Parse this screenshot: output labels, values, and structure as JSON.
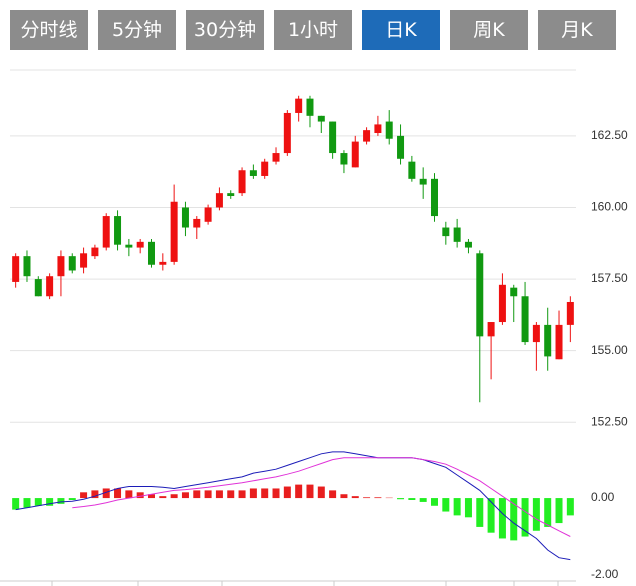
{
  "tabs": [
    {
      "label": "分时线"
    },
    {
      "label": "5分钟"
    },
    {
      "label": "30分钟"
    },
    {
      "label": "1小时"
    },
    {
      "label": "日K",
      "active": true
    },
    {
      "label": "周K"
    },
    {
      "label": "月K"
    }
  ],
  "chart_data": [
    {
      "type": "candlestick",
      "up_color": "#ee1111",
      "down_color": "#119911",
      "ylim": [
        152.3,
        164.8
      ],
      "yticks": [
        {
          "value": 152.5,
          "label": "152.50"
        },
        {
          "value": 155,
          "label": "155.00"
        },
        {
          "value": 157.5,
          "label": "157.50"
        },
        {
          "value": 160,
          "label": "160.00"
        },
        {
          "value": 162.5,
          "label": "162.50"
        }
      ],
      "grid": true,
      "open": [
        157.4,
        158.3,
        157.5,
        156.9,
        157.6,
        158.3,
        157.9,
        158.3,
        158.6,
        159.7,
        158.7,
        158.6,
        158.8,
        158.0,
        158.1,
        160.0,
        159.3,
        159.5,
        160.0,
        160.5,
        160.5,
        161.3,
        161.1,
        161.6,
        161.9,
        163.3,
        163.8,
        163.2,
        163.0,
        161.9,
        161.4,
        162.3,
        162.6,
        163.0,
        162.5,
        161.6,
        161.0,
        161.0,
        159.3,
        159.3,
        158.8,
        158.4,
        155.5,
        156.0,
        157.2,
        156.9,
        155.3,
        155.9,
        154.7,
        155.9
      ],
      "high": [
        158.4,
        158.5,
        157.6,
        157.7,
        158.5,
        158.4,
        158.6,
        158.7,
        159.8,
        159.9,
        158.9,
        158.9,
        158.9,
        158.4,
        160.8,
        160.2,
        159.7,
        160.1,
        160.7,
        160.6,
        161.4,
        161.5,
        161.7,
        162.1,
        163.4,
        163.9,
        163.9,
        163.2,
        163.0,
        162.0,
        162.5,
        162.8,
        163.2,
        163.4,
        162.9,
        161.8,
        161.4,
        161.2,
        159.5,
        159.6,
        158.9,
        158.5,
        156.0,
        157.7,
        157.3,
        157.4,
        156.0,
        156.5,
        156.4,
        156.9
      ],
      "low": [
        157.2,
        157.4,
        156.9,
        156.8,
        156.9,
        157.7,
        157.7,
        158.2,
        158.5,
        158.5,
        158.3,
        158.4,
        157.9,
        157.8,
        158.0,
        159.0,
        158.9,
        159.4,
        159.9,
        160.3,
        160.4,
        161.0,
        161.0,
        161.5,
        161.8,
        163.0,
        162.8,
        162.6,
        161.7,
        161.2,
        161.4,
        162.2,
        162.5,
        162.2,
        161.5,
        160.9,
        160.3,
        159.5,
        158.7,
        158.6,
        158.4,
        153.2,
        154.0,
        155.9,
        156.0,
        155.2,
        154.3,
        154.3,
        154.7,
        155.3
      ],
      "close": [
        158.3,
        157.6,
        156.9,
        157.6,
        158.3,
        157.8,
        158.4,
        158.6,
        159.7,
        158.7,
        158.6,
        158.8,
        158.0,
        158.1,
        160.2,
        159.3,
        159.6,
        160.0,
        160.5,
        160.4,
        161.3,
        161.1,
        161.6,
        161.9,
        163.3,
        163.8,
        163.2,
        163.0,
        161.9,
        161.5,
        162.3,
        162.7,
        162.9,
        162.4,
        161.7,
        161.0,
        160.8,
        159.7,
        159.0,
        158.8,
        158.6,
        155.5,
        156.0,
        157.3,
        156.9,
        155.3,
        155.9,
        154.8,
        155.9,
        156.7
      ]
    },
    {
      "type": "macd",
      "ylim": [
        -2.13,
        1.64
      ],
      "yticks": [
        {
          "value": -2,
          "label": "-2.00"
        },
        {
          "value": 0,
          "label": "0.00"
        }
      ],
      "histogram": {
        "up_color": "#e81e1e",
        "down_color": "#22ee22",
        "values": [
          -0.3,
          -0.25,
          -0.2,
          -0.2,
          -0.15,
          -0.05,
          0.15,
          0.2,
          0.25,
          0.25,
          0.2,
          0.15,
          0.1,
          0.05,
          0.1,
          0.15,
          0.2,
          0.2,
          0.2,
          0.2,
          0.2,
          0.25,
          0.25,
          0.25,
          0.3,
          0.35,
          0.35,
          0.3,
          0.2,
          0.1,
          0.05,
          0.02,
          0.02,
          0.01,
          -0.03,
          -0.05,
          -0.1,
          -0.2,
          -0.35,
          -0.45,
          -0.5,
          -0.75,
          -0.9,
          -1.05,
          -1.1,
          -1.0,
          -0.85,
          -0.75,
          -0.65,
          -0.45
        ]
      },
      "series": [
        {
          "color": "#1c1cb8",
          "values": [
            -0.3,
            -0.25,
            -0.2,
            -0.15,
            -0.1,
            -0.08,
            -0.03,
            0.05,
            0.15,
            0.25,
            0.3,
            0.3,
            0.3,
            0.28,
            0.25,
            0.3,
            0.35,
            0.4,
            0.45,
            0.5,
            0.55,
            0.65,
            0.7,
            0.75,
            0.85,
            0.95,
            1.05,
            1.15,
            1.2,
            1.2,
            1.15,
            1.1,
            1.05,
            1.05,
            1.05,
            1.05,
            1.0,
            0.9,
            0.8,
            0.6,
            0.4,
            0.2,
            -0.1,
            -0.4,
            -0.65,
            -0.85,
            -1.05,
            -1.35,
            -1.55,
            -1.6
          ]
        },
        {
          "color": "#e033d8",
          "values": [
            null,
            null,
            null,
            null,
            null,
            -0.25,
            -0.22,
            -0.18,
            -0.12,
            -0.05,
            0,
            0.05,
            0.1,
            0.15,
            0.2,
            0.22,
            0.25,
            0.28,
            0.32,
            0.36,
            0.4,
            0.45,
            0.5,
            0.55,
            0.62,
            0.7,
            0.8,
            0.9,
            1.0,
            1.05,
            1.05,
            1.05,
            1.05,
            1.05,
            1.05,
            1.05,
            1.0,
            0.95,
            0.88,
            0.75,
            0.6,
            0.45,
            0.25,
            0.05,
            -0.15,
            -0.35,
            -0.55,
            -0.7,
            -0.85,
            -1.0
          ]
        }
      ]
    }
  ]
}
